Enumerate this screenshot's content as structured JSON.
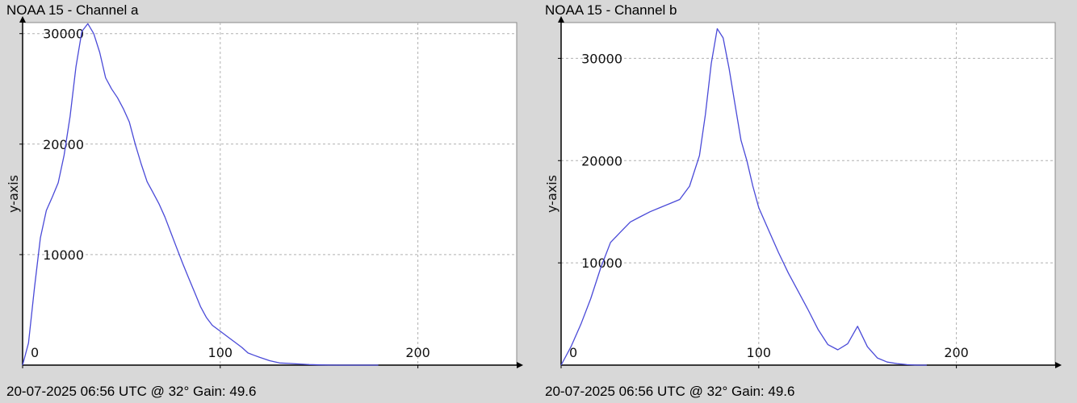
{
  "chart_data": [
    {
      "type": "line",
      "title": "NOAA 15 - Channel a",
      "footer": "20-07-2025 06:56 UTC @ 32° Gain: 49.6",
      "xlabel": "",
      "ylabel": "y-axis",
      "xlim": [
        0,
        250
      ],
      "ylim": [
        0,
        31000
      ],
      "x_ticks": [
        "0",
        "100",
        "200"
      ],
      "y_ticks": [
        "10000",
        "20000",
        "30000"
      ],
      "grid": true,
      "line_color": "#4a4ad8",
      "series": [
        {
          "x": [
            0,
            3,
            6,
            9,
            12,
            15,
            18,
            21,
            24,
            27,
            30,
            33,
            36,
            39,
            42,
            45,
            48,
            51,
            54,
            57,
            60,
            63,
            66,
            69,
            72,
            75,
            78,
            81,
            84,
            87,
            90,
            93,
            96,
            99,
            102,
            105,
            108,
            111,
            114,
            117,
            120,
            125,
            130,
            135,
            140,
            145,
            150,
            155,
            160,
            165,
            170,
            175,
            180
          ],
          "y": [
            0,
            2000,
            7000,
            11500,
            14000,
            15200,
            16500,
            19000,
            22500,
            27000,
            30200,
            30900,
            30000,
            28300,
            26000,
            25000,
            24200,
            23200,
            22000,
            20000,
            18200,
            16600,
            15600,
            14600,
            13400,
            12000,
            10600,
            9200,
            7900,
            6600,
            5300,
            4300,
            3600,
            3200,
            2800,
            2400,
            2000,
            1600,
            1100,
            900,
            700,
            400,
            200,
            150,
            100,
            50,
            20,
            10,
            0,
            0,
            0,
            0,
            0
          ]
        }
      ]
    },
    {
      "type": "line",
      "title": "NOAA 15 - Channel b",
      "footer": "20-07-2025 06:56 UTC @ 32° Gain: 49.6",
      "xlabel": "",
      "ylabel": "y-axis",
      "xlim": [
        0,
        250
      ],
      "ylim": [
        0,
        33500
      ],
      "x_ticks": [
        "0",
        "100",
        "200"
      ],
      "y_ticks": [
        "10000",
        "20000",
        "30000"
      ],
      "grid": true,
      "line_color": "#4a4ad8",
      "series": [
        {
          "x": [
            0,
            5,
            10,
            15,
            20,
            25,
            30,
            35,
            40,
            45,
            50,
            55,
            60,
            65,
            70,
            73,
            76,
            79,
            82,
            85,
            88,
            91,
            94,
            97,
            100,
            105,
            110,
            115,
            120,
            125,
            130,
            135,
            140,
            145,
            150,
            155,
            160,
            165,
            170,
            175,
            180,
            185
          ],
          "y": [
            0,
            1800,
            4000,
            6500,
            9500,
            12000,
            13000,
            14000,
            14500,
            15000,
            15400,
            15800,
            16200,
            17500,
            20500,
            24500,
            29500,
            32900,
            32000,
            29000,
            25500,
            22000,
            20000,
            17500,
            15400,
            13200,
            11000,
            9000,
            7200,
            5400,
            3500,
            2000,
            1500,
            2100,
            3800,
            1800,
            700,
            300,
            150,
            50,
            0,
            0
          ]
        }
      ]
    }
  ]
}
